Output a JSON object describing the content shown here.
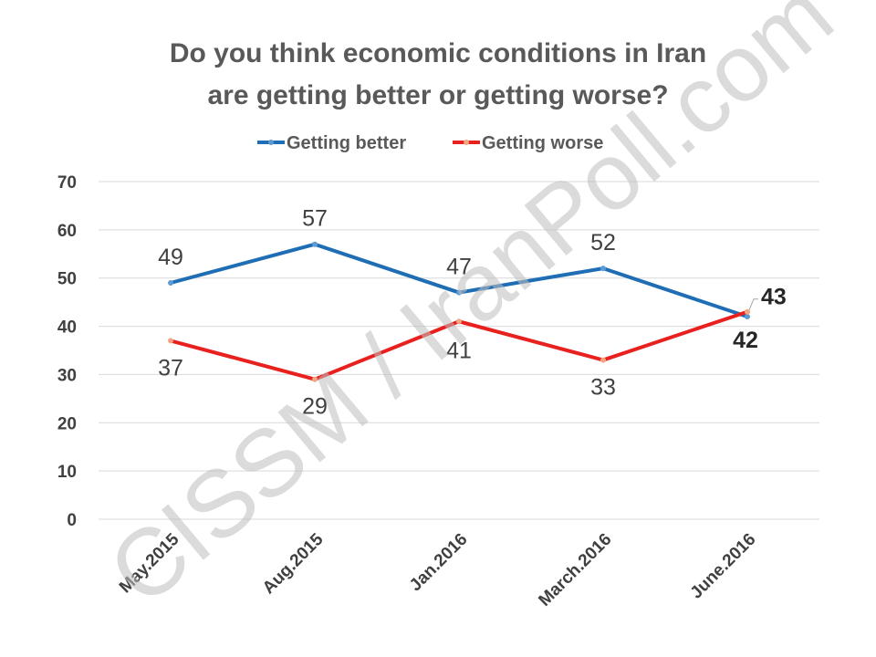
{
  "chart_data": {
    "type": "line",
    "title_lines": [
      "Do you think economic conditions in Iran",
      "are getting better or getting worse?"
    ],
    "categories": [
      "May.2015",
      "Aug.2015",
      "Jan.2016",
      "March.2016",
      "June.2016"
    ],
    "series": [
      {
        "name": "Getting better",
        "color": "#1f6eb5",
        "values": [
          49,
          57,
          47,
          52,
          42
        ]
      },
      {
        "name": "Getting worse",
        "color": "#e8201e",
        "values": [
          37,
          29,
          41,
          33,
          43
        ]
      }
    ],
    "ylim": [
      0,
      70
    ],
    "yticks": [
      0,
      10,
      20,
      30,
      40,
      50,
      60,
      70
    ],
    "grid": true,
    "legend_position": "top-center",
    "data_labels": [
      [
        "49",
        "57",
        "47",
        "52",
        "42"
      ],
      [
        "37",
        "29",
        "41",
        "33",
        "43"
      ]
    ],
    "watermark": "CISSM / IranPoll.com",
    "marker_color": "#f4a582"
  }
}
